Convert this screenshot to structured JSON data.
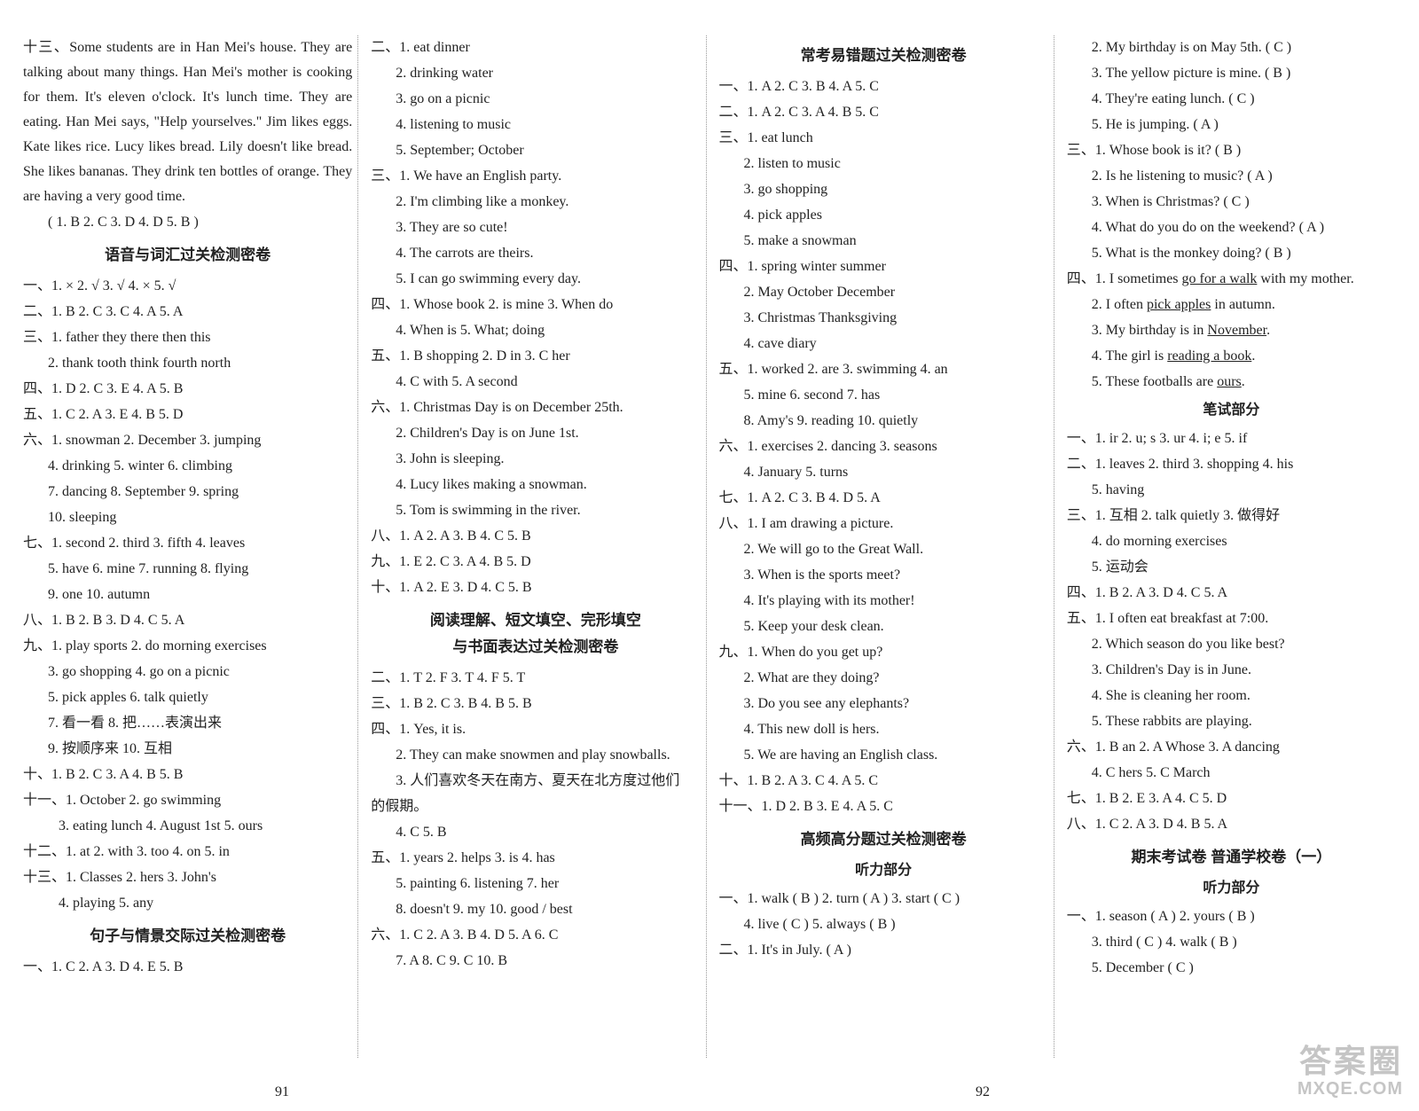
{
  "col1": {
    "paragraph_prefix": "十三、",
    "paragraph": "Some students are in Han Mei's house. They are talking about many things. Han Mei's mother is cooking for them. It's eleven o'clock. It's lunch time. They are eating. Han Mei says, \"Help yourselves.\" Jim likes eggs. Kate likes rice. Lucy likes bread. Lily doesn't like bread. She likes bananas. They drink ten bottles of orange. They are having a very good time.",
    "paragraph_ans": "( 1. B    2. C    3. D    4. D    5. B )",
    "title1": "语音与词汇过关检测密卷",
    "q1": "一、1. ×    2. √    3. √    4. ×    5. √",
    "q2": "二、1. B    2. C    3. C    4. A    5. A",
    "q3_1": "三、1. father  they  there  then  this",
    "q3_2": "2. thank  tooth  think  fourth  north",
    "q4": "四、1. D    2. C    3. E    4. A    5. B",
    "q5": "五、1. C    2. A    3. E    4. B    5. D",
    "q6_1": "六、1. snowman    2. December    3. jumping",
    "q6_2": "4. drinking    5. winter    6. climbing",
    "q6_3": "7. dancing    8. September    9. spring",
    "q6_4": "10. sleeping",
    "q7_1": "七、1. second    2. third    3. fifth    4. leaves",
    "q7_2": "5. have    6. mine    7. running    8. flying",
    "q7_3": "9. one    10. autumn",
    "q8": "八、1. B    2. B    3. D    4. C    5. A",
    "q9_1": "九、1. play sports    2. do morning exercises",
    "q9_2": "3. go shopping    4. go on a picnic",
    "q9_3": "5. pick apples    6. talk quietly",
    "q9_4": "7. 看一看    8. 把……表演出来",
    "q9_5": "9. 按顺序来    10. 互相",
    "q10": "十、1. B    2. C    3. A    4. B    5. B",
    "q11_1": "十一、1. October    2. go swimming",
    "q11_2": "3. eating lunch    4. August 1st    5. ours",
    "q12": "十二、1. at    2. with    3. too    4. on    5. in",
    "q13_1": "十三、1. Classes    2. hers    3. John's",
    "q13_2": "4. playing    5. any",
    "title2": "句子与情景交际过关检测密卷",
    "qa": "一、1. C    2. A    3. D    4. E    5. B"
  },
  "col2": {
    "q2_1": "二、1. eat dinner",
    "q2_2": "2. drinking water",
    "q2_3": "3. go on a picnic",
    "q2_4": "4. listening to music",
    "q2_5": "5. September; October",
    "q3_1": "三、1. We have an English party.",
    "q3_2": "2. I'm climbing like a monkey.",
    "q3_3": "3. They are so cute!",
    "q3_4": "4. The carrots are theirs.",
    "q3_5": "5. I can go swimming every day.",
    "q4_1": "四、1. Whose book    2. is mine    3. When do",
    "q4_2": "4. When is    5. What; doing",
    "q5_1": "五、1. B  shopping    2. D  in    3. C  her",
    "q5_2": "4. C  with    5. A  second",
    "q6_1": "六、1. Christmas Day is on December 25th.",
    "q6_2": "2. Children's Day is on June 1st.",
    "q6_3": "3. John is sleeping.",
    "q6_4": "4. Lucy likes making a snowman.",
    "q6_5": "5. Tom is swimming in the river.",
    "q7": "八、1. A    2. A    3. B    4. C    5. B",
    "q8": "九、1. E    2. C    3. A    4. B    5. D",
    "q9": "十、1. A    2. E    3. D    4. C    5. B",
    "title1": "阅读理解、短文填空、完形填空",
    "title1b": "与书面表达过关检测密卷",
    "r2": "二、1. T    2. F    3. T    4. F    5. T",
    "r3": "三、1. B    2. C    3. B    4. B    5. B",
    "r4_1": "四、1. Yes, it is.",
    "r4_2": "2. They can make snowmen and play snowballs.",
    "r4_3a": "3. 人们喜欢冬天在南方、夏天在北方度过他们",
    "r4_3b": "的假期。",
    "r4_4": "4. C    5. B",
    "r5_1": "五、1. years    2. helps    3. is    4. has",
    "r5_2": "5. painting    6. listening    7. her",
    "r5_3": "8. doesn't    9. my    10. good / best",
    "r6_1": "六、1. C    2. A    3. B    4. D    5. A    6. C",
    "r6_2": "7. A    8. C    9. C    10. B"
  },
  "col3": {
    "title1": "常考易错题过关检测密卷",
    "q1": "一、1. A    2. C    3. B    4. A    5. C",
    "q2": "二、1. A    2. C    3. A    4. B    5. C",
    "q3_1": "三、1. eat lunch",
    "q3_2": "2. listen to music",
    "q3_3": "3. go shopping",
    "q3_4": "4. pick apples",
    "q3_5": "5. make a snowman",
    "q4_1": "四、1. spring  winter  summer",
    "q4_2": "2. May  October  December",
    "q4_3": "3. Christmas  Thanksgiving",
    "q4_4": "4. cave  diary",
    "q5_1": "五、1. worked    2. are    3. swimming    4. an",
    "q5_2": "5. mine    6. second    7. has",
    "q5_3": "8. Amy's    9. reading    10. quietly",
    "q6_1": "六、1. exercises    2. dancing    3. seasons",
    "q6_2": "4. January    5. turns",
    "q7": "七、1. A    2. C    3. B    4. D    5. A",
    "q8_1": "八、1. I am drawing a picture.",
    "q8_2": "2. We will go to the Great Wall.",
    "q8_3": "3. When is the sports meet?",
    "q8_4": "4. It's playing with its mother!",
    "q8_5": "5. Keep your desk clean.",
    "q9_1": "九、1. When do you get up?",
    "q9_2": "2. What are they doing?",
    "q9_3": "3. Do you see any elephants?",
    "q9_4": "4. This new doll is hers.",
    "q9_5": "5. We are having an English class.",
    "q10": "十、1. B    2. A    3. C    4. A    5. C",
    "q11": "十一、1. D    2. B    3. E    4. A    5. C",
    "title2": "高频高分题过关检测密卷",
    "sub1": "听力部分",
    "h1_1": "一、1. walk ( B )    2. turn ( A )    3. start ( C )",
    "h1_2": "4. live ( C )    5. always ( B )",
    "h2": "二、1. It's in July. ( A )"
  },
  "col4": {
    "l1": "2. My birthday is on May 5th. ( C )",
    "l2": "3. The yellow picture is mine. ( B )",
    "l3": "4. They're eating lunch. ( C )",
    "l4": "5. He is jumping. ( A )",
    "q3_1": "三、1. Whose book is it? ( B )",
    "q3_2": "2. Is he listening to music? ( A )",
    "q3_3": "3. When is Christmas? ( C )",
    "q3_4": "4. What do you do on the weekend? ( A )",
    "q3_5": "5. What is the monkey doing? ( B )",
    "q4_1a": "四、1. I sometimes ",
    "q4_1u": "go for a walk",
    "q4_1b": " with my mother.",
    "q4_2a": "2. I often ",
    "q4_2u": "pick apples",
    "q4_2b": " in autumn.",
    "q4_3a": "3. My birthday is in ",
    "q4_3u": "November",
    "q4_3b": ".",
    "q4_4a": "4. The girl is ",
    "q4_4u": "reading a book",
    "q4_4b": ".",
    "q4_5a": "5. These footballs are ",
    "q4_5u": "ours",
    "q4_5b": ".",
    "sub1": "笔试部分",
    "b1": "一、1. ir    2. u; s    3. ur    4. i; e    5. if",
    "b2_1": "二、1. leaves    2. third    3. shopping    4. his",
    "b2_2": "5. having",
    "b3_1": "三、1. 互相    2. talk quietly    3. 做得好",
    "b3_2": "4. do morning exercises",
    "b3_3": "5. 运动会",
    "b4": "四、1. B    2. A    3. D    4. C    5. A",
    "b5_1": "五、1. I often eat breakfast at 7:00.",
    "b5_2": "2. Which season do you like best?",
    "b5_3": "3. Children's Day is in June.",
    "b5_4": "4. She is cleaning her room.",
    "b5_5": "5. These rabbits are playing.",
    "b6_1": "六、1. B  an    2. A  Whose    3. A  dancing",
    "b6_2": "4. C  hers    5. C  March",
    "b7": "七、1. B    2. E    3. A    4. C    5. D",
    "b8": "八、1. C    2. A    3. D    4. B    5. A",
    "title1": "期末考试卷  普通学校卷（一）",
    "sub2": "听力部分",
    "e1_1": "一、1. season ( A )    2. yours ( B )",
    "e1_2": "3. third ( C )    4. walk ( B )",
    "e1_3": "5. December ( C )"
  },
  "pagenum_left": "91",
  "pagenum_right": "92",
  "watermark_cn": "答案圈",
  "watermark_en": "MXQE.COM"
}
